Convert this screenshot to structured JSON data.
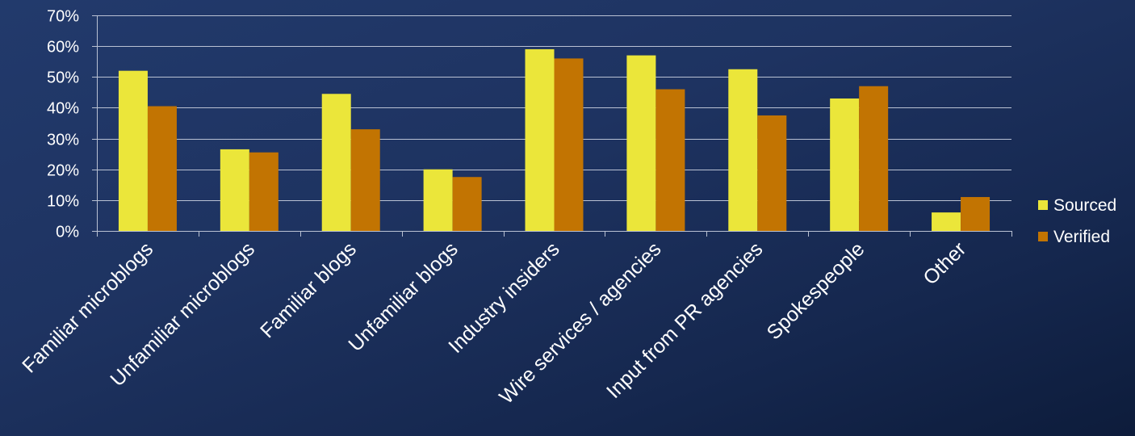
{
  "chart_data": {
    "type": "bar",
    "title": "",
    "xlabel": "",
    "ylabel": "",
    "categories": [
      "Familiar microblogs",
      "Unfamiliar microblogs",
      "Familiar blogs",
      "Unfamiliar blogs",
      "Industry insiders",
      "Wire services / agencies",
      "Input from PR agencies",
      "Spokespeople",
      "Other"
    ],
    "series": [
      {
        "name": "Sourced",
        "color": "#ebe63a",
        "values": [
          0.52,
          0.265,
          0.445,
          0.2,
          0.59,
          0.57,
          0.525,
          0.43,
          0.06
        ]
      },
      {
        "name": "Verified",
        "color": "#c27402",
        "values": [
          0.405,
          0.255,
          0.33,
          0.175,
          0.56,
          0.46,
          0.375,
          0.47,
          0.11
        ]
      }
    ],
    "ylim": [
      0,
      0.7
    ],
    "yticks": [
      {
        "value": 0.0,
        "label": "0%"
      },
      {
        "value": 0.1,
        "label": "10%"
      },
      {
        "value": 0.2,
        "label": "20%"
      },
      {
        "value": 0.3,
        "label": "30%"
      },
      {
        "value": 0.4,
        "label": "40%"
      },
      {
        "value": 0.5,
        "label": "50%"
      },
      {
        "value": 0.6,
        "label": "60%"
      },
      {
        "value": 0.7,
        "label": "70%"
      }
    ],
    "grid": true,
    "legend_position": "right"
  }
}
